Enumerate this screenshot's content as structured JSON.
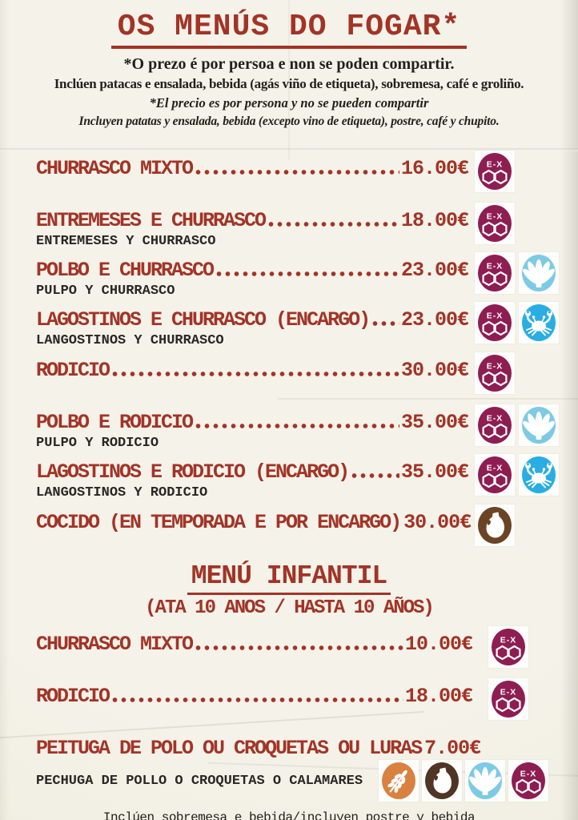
{
  "colors": {
    "ink_red": "#a23427",
    "text_black": "#23201b",
    "paper": "#f1eee3",
    "badge_ex_bg": "#8e1d52",
    "badge_mollusc_bg": "#7ccae5",
    "badge_crustacean_bg": "#29ade2",
    "badge_milk_bg": "#6b4423",
    "badge_milk_dark_bg": "#503424",
    "badge_gluten_bg": "#d98140"
  },
  "header": {
    "title": "OS MENÚS DO FOGAR*",
    "notes": [
      {
        "text": "*O prezo é por persoa e non se poden compartir."
      },
      {
        "text": "Inclúen patacas e ensalada, bebida (agás viño de etiqueta), sobremesa, café e groliño."
      },
      {
        "text": "*El precio es por persona y no se pueden compartir"
      },
      {
        "text": "Incluyen patatas y ensalada, bebida (excepto vino de etiqueta), postre, café y chupito."
      }
    ]
  },
  "allergens": {
    "ex": {
      "label": "E-X",
      "bg": "#8e1d52",
      "icon": "ex-badge"
    },
    "mollusc": {
      "bg": "#7ccae5",
      "icon": "scallop-shell"
    },
    "crustacean": {
      "bg": "#29ade2",
      "icon": "crab"
    },
    "milk": {
      "bg": "#6b4423",
      "icon": "milk-jug"
    },
    "milk_dark": {
      "bg": "#503424",
      "icon": "milk-jug"
    },
    "gluten": {
      "bg": "#d98140",
      "icon": "wheat-ear"
    }
  },
  "main_menu": {
    "items": [
      {
        "name": "CHURRASCO MIXTO",
        "price": "16.00€",
        "allergens": [
          "ex"
        ]
      },
      {
        "name": "ENTREMESES E CHURRASCO",
        "price": "18.00€",
        "translation": "ENTREMESES Y CHURRASCO",
        "allergens": [
          "ex"
        ]
      },
      {
        "name": "POLBO E CHURRASCO",
        "price": "23.00€",
        "translation": "PULPO Y CHURRASCO",
        "allergens": [
          "ex",
          "mollusc"
        ]
      },
      {
        "name": "LAGOSTINOS E CHURRASCO (ENCARGO)",
        "price": "23.00€",
        "translation": "LANGOSTINOS Y CHURRASCO",
        "allergens": [
          "ex",
          "crustacean"
        ]
      },
      {
        "name": "RODICIO",
        "price": "30.00€",
        "allergens": [
          "ex"
        ]
      },
      {
        "name": "POLBO E RODICIO",
        "price": "35.00€",
        "translation": "PULPO Y RODICIO",
        "allergens": [
          "ex",
          "mollusc"
        ]
      },
      {
        "name": "LAGOSTINOS E RODICIO (ENCARGO)",
        "price": "35.00€",
        "translation": "LANGOSTINOS Y RODICIO",
        "allergens": [
          "ex",
          "crustacean"
        ]
      },
      {
        "name": "COCIDO (EN TEMPORADA E POR ENCARGO)",
        "price": "30.00€",
        "allergens": [
          "milk"
        ]
      }
    ]
  },
  "kids_menu": {
    "title": "MENÚ INFANTIL",
    "subtitle": "(ATA 10 ANOS / HASTA 10 AÑOS)",
    "items": [
      {
        "name": "CHURRASCO MIXTO",
        "price": "10.00€",
        "allergens": [
          "ex"
        ]
      },
      {
        "name": "RODICIO",
        "price": "18.00€",
        "allergens": [
          "ex"
        ]
      },
      {
        "name": "PEITUGA DE POLO OU CROQUETAS OU LURAS",
        "price": "7.00€",
        "translation": "PECHUGA DE POLLO O CROQUETAS O CALAMARES",
        "allergens": [
          "gluten",
          "milk_dark",
          "mollusc",
          "ex"
        ],
        "icons_below": true
      }
    ]
  },
  "footer": {
    "text": "Inclúen sobremesa e bebida/incluyen postre y bebida"
  }
}
